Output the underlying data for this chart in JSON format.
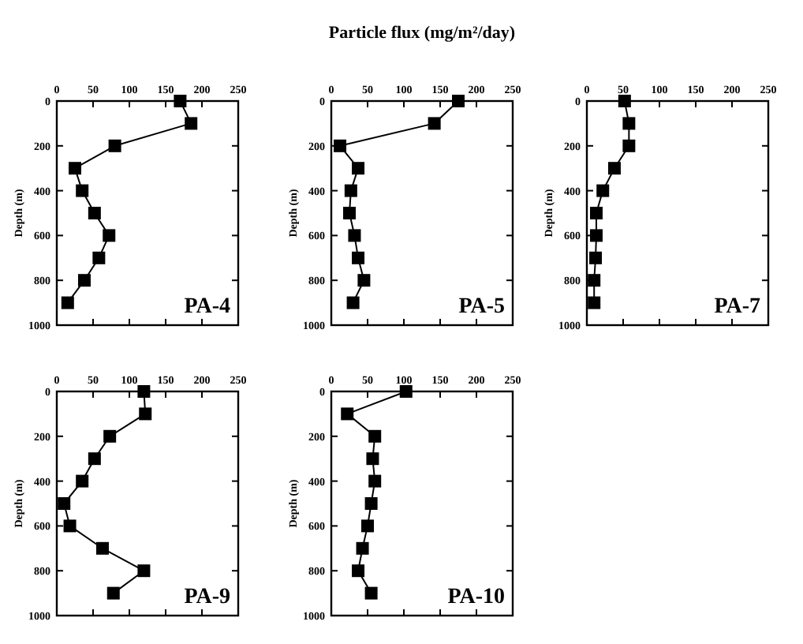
{
  "chart_data": [
    {
      "type": "line",
      "ylabel": "Depth (m)",
      "annotations": [
        "PA-4"
      ],
      "marker": "square",
      "line_style": "solid",
      "grid": false,
      "xlim": [
        0,
        250
      ],
      "xticks": [
        0,
        50,
        100,
        150,
        200,
        250
      ],
      "ylim": [
        1000,
        0
      ],
      "yticks": [
        0,
        200,
        400,
        600,
        800,
        1000
      ],
      "series": [
        {
          "color": "#000000",
          "x": [
            170,
            185,
            80,
            25,
            35,
            52,
            72,
            58,
            38,
            15
          ],
          "values": [
            0,
            100,
            200,
            300,
            400,
            500,
            600,
            700,
            800,
            900
          ]
        }
      ]
    },
    {
      "type": "line",
      "title": "Particle flux  (mg/m²/day)",
      "ylabel": "Depth (m)",
      "annotations": [
        "PA-5"
      ],
      "marker": "square",
      "line_style": "solid",
      "grid": false,
      "xlim": [
        0,
        250
      ],
      "xticks": [
        0,
        50,
        100,
        150,
        200,
        250
      ],
      "ylim": [
        1000,
        0
      ],
      "yticks": [
        0,
        200,
        400,
        600,
        800,
        1000
      ],
      "series": [
        {
          "color": "#000000",
          "x": [
            175,
            142,
            12,
            37,
            27,
            25,
            32,
            37,
            45,
            30
          ],
          "values": [
            0,
            100,
            200,
            300,
            400,
            500,
            600,
            700,
            800,
            900
          ]
        }
      ]
    },
    {
      "type": "line",
      "ylabel": "Depth (m)",
      "annotations": [
        "PA-7"
      ],
      "marker": "square",
      "line_style": "solid",
      "grid": false,
      "xlim": [
        0,
        250
      ],
      "xticks": [
        0,
        50,
        100,
        150,
        200,
        250
      ],
      "ylim": [
        1000,
        0
      ],
      "yticks": [
        0,
        200,
        400,
        600,
        800,
        1000
      ],
      "series": [
        {
          "color": "#000000",
          "x": [
            52,
            58,
            58,
            38,
            22,
            13,
            13,
            12,
            10,
            10
          ],
          "values": [
            0,
            100,
            200,
            300,
            400,
            500,
            600,
            700,
            800,
            900
          ]
        }
      ]
    },
    {
      "type": "line",
      "ylabel": "Depth (m)",
      "annotations": [
        "PA-9"
      ],
      "marker": "square",
      "line_style": "solid",
      "grid": false,
      "xlim": [
        0,
        250
      ],
      "xticks": [
        0,
        50,
        100,
        150,
        200,
        250
      ],
      "ylim": [
        1000,
        0
      ],
      "yticks": [
        0,
        200,
        400,
        600,
        800,
        1000
      ],
      "series": [
        {
          "color": "#000000",
          "x": [
            120,
            122,
            73,
            52,
            35,
            10,
            18,
            63,
            120,
            78
          ],
          "values": [
            0,
            100,
            200,
            300,
            400,
            500,
            600,
            700,
            800,
            900
          ]
        }
      ]
    },
    {
      "type": "line",
      "ylabel": "Depth (m)",
      "annotations": [
        "PA-10"
      ],
      "marker": "square",
      "line_style": "solid",
      "grid": false,
      "xlim": [
        0,
        250
      ],
      "xticks": [
        0,
        50,
        100,
        150,
        200,
        250
      ],
      "ylim": [
        1000,
        0
      ],
      "yticks": [
        0,
        200,
        400,
        600,
        800,
        1000
      ],
      "series": [
        {
          "color": "#000000",
          "x": [
            103,
            22,
            60,
            57,
            60,
            55,
            50,
            43,
            37,
            55
          ],
          "values": [
            0,
            100,
            200,
            300,
            400,
            500,
            600,
            700,
            800,
            900
          ]
        }
      ]
    }
  ]
}
